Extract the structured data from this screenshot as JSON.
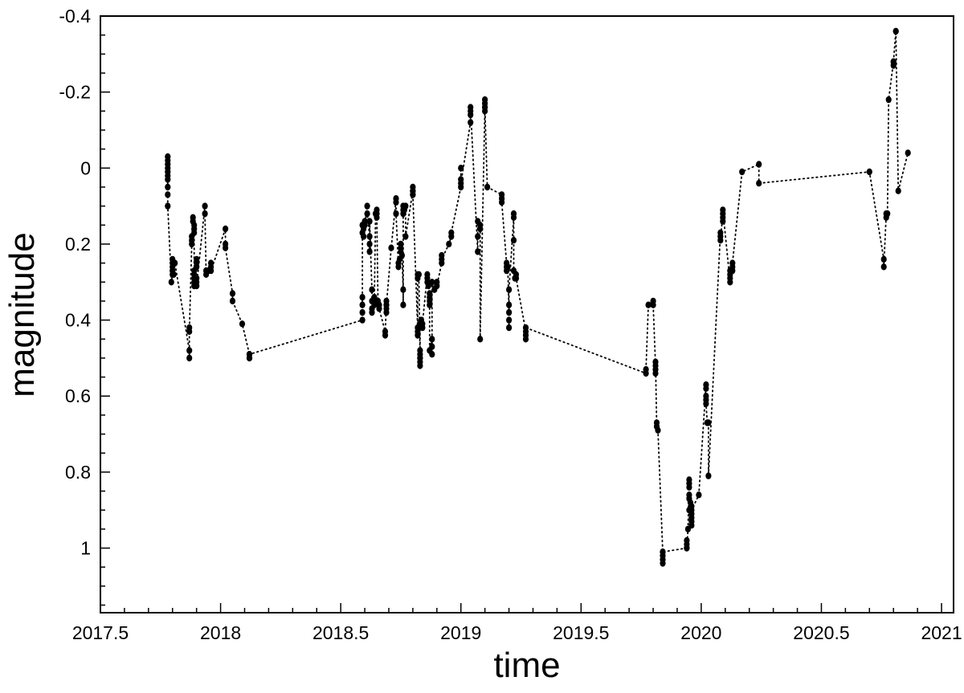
{
  "chart_data": {
    "type": "scatter",
    "title": "",
    "xlabel": "time",
    "ylabel": "magnitude",
    "xlim": [
      2017.5,
      2021.05
    ],
    "ylim": [
      1.17,
      -0.4
    ],
    "y_inverted": true,
    "grid": false,
    "legend": "none",
    "x_ticks": [
      "2017.5",
      "2018",
      "2018.5",
      "2019",
      "2019.5",
      "2020",
      "2020.5",
      "2021"
    ],
    "y_ticks": [
      "-0.4",
      "-0.2",
      "0",
      "0.2",
      "0.4",
      "0.6",
      "0.8",
      "1"
    ],
    "colors": {
      "marker": "#000000",
      "line": "#000000"
    },
    "connect_style": "dotted",
    "series": [
      {
        "x": [
          2017.78,
          2017.78,
          2017.78,
          2017.78,
          2017.78,
          2017.78,
          2017.78,
          2017.78,
          2017.78,
          2017.78,
          2017.795,
          2017.8,
          2017.8,
          2017.8,
          2017.8,
          2017.8,
          2017.805,
          2017.81,
          2017.87,
          2017.87,
          2017.87,
          2017.87,
          2017.88,
          2017.88,
          2017.88,
          2017.885,
          2017.885,
          2017.89,
          2017.89,
          2017.89,
          2017.89,
          2017.89,
          2017.89,
          2017.89,
          2017.89,
          2017.9,
          2017.9,
          2017.9,
          2017.9,
          2017.9,
          2017.9,
          2017.935,
          2017.935,
          2017.94,
          2017.94,
          2017.95,
          2017.96,
          2017.96,
          2017.96,
          2018.02,
          2018.02,
          2018.02,
          2018.05,
          2018.05,
          2018.09,
          2018.12,
          2018.12,
          2018.12,
          2018.12,
          2018.59,
          2018.59,
          2018.59,
          2018.59,
          2018.59,
          2018.59,
          2018.595,
          2018.595,
          2018.6,
          2018.6,
          2018.61,
          2018.61,
          2018.62,
          2018.62,
          2018.62,
          2018.62,
          2018.63,
          2018.63,
          2018.63,
          2018.63,
          2018.64,
          2018.64,
          2018.64,
          2018.645,
          2018.65,
          2018.65,
          2018.65,
          2018.655,
          2018.66,
          2018.66,
          2018.685,
          2018.685,
          2018.69,
          2018.69,
          2018.69,
          2018.69,
          2018.69,
          2018.71,
          2018.73,
          2018.73,
          2018.73,
          2018.74,
          2018.74,
          2018.745,
          2018.75,
          2018.75,
          2018.75,
          2018.755,
          2018.76,
          2018.76,
          2018.76,
          2018.76,
          2018.76,
          2018.765,
          2018.77,
          2018.77,
          2018.8,
          2018.8,
          2018.8,
          2018.8,
          2018.8,
          2018.82,
          2018.82,
          2018.82,
          2018.82,
          2018.82,
          2018.825,
          2018.83,
          2018.83,
          2018.83,
          2018.83,
          2018.83,
          2018.83,
          2018.83,
          2018.835,
          2018.84,
          2018.84,
          2018.86,
          2018.86,
          2018.86,
          2018.865,
          2018.87,
          2018.87,
          2018.87,
          2018.87,
          2018.87,
          2018.88,
          2018.88,
          2018.88,
          2018.88,
          2018.89,
          2018.9,
          2018.9,
          2018.92,
          2018.92,
          2018.92,
          2018.95,
          2018.96,
          2018.96,
          2019.0,
          2019.0,
          2019.0,
          2019.0,
          2019.04,
          2019.04,
          2019.04,
          2019.04,
          2019.07,
          2019.07,
          2019.07,
          2019.08,
          2019.08,
          2019.08,
          2019.1,
          2019.1,
          2019.1,
          2019.1,
          2019.1,
          2019.11,
          2019.17,
          2019.17,
          2019.17,
          2019.19,
          2019.19,
          2019.19,
          2019.195,
          2019.2,
          2019.2,
          2019.2,
          2019.2,
          2019.2,
          2019.22,
          2019.22,
          2019.22,
          2019.22,
          2019.225,
          2019.23,
          2019.23,
          2019.27,
          2019.27,
          2019.27,
          2019.27,
          2019.77,
          2019.77,
          2019.78,
          2019.8,
          2019.8,
          2019.81,
          2019.81,
          2019.81,
          2019.81,
          2019.815,
          2019.815,
          2019.82,
          2019.84,
          2019.84,
          2019.84,
          2019.84,
          2019.84,
          2019.94,
          2019.94,
          2019.94,
          2019.94,
          2019.945,
          2019.95,
          2019.95,
          2019.95,
          2019.95,
          2019.95,
          2019.95,
          2019.955,
          2019.96,
          2019.96,
          2019.96,
          2019.96,
          2019.96,
          2019.96,
          2019.99,
          2020.02,
          2020.02,
          2020.02,
          2020.02,
          2020.02,
          2020.025,
          2020.03,
          2020.03,
          2020.08,
          2020.08,
          2020.08,
          2020.09,
          2020.09,
          2020.09,
          2020.09,
          2020.12,
          2020.12,
          2020.12,
          2020.12,
          2020.13,
          2020.13,
          2020.13,
          2020.17,
          2020.24,
          2020.24,
          2020.7,
          2020.76,
          2020.76,
          2020.77,
          2020.77,
          2020.775,
          2020.78,
          2020.8,
          2020.8,
          2020.8,
          2020.81,
          2020.81,
          2020.82,
          2020.86
        ],
        "y": [
          -0.03,
          -0.02,
          -0.01,
          0.0,
          0.01,
          0.02,
          0.03,
          0.05,
          0.07,
          0.1,
          0.3,
          0.28,
          0.27,
          0.26,
          0.25,
          0.24,
          0.28,
          0.25,
          0.48,
          0.5,
          0.42,
          0.43,
          0.2,
          0.19,
          0.18,
          0.13,
          0.14,
          0.15,
          0.16,
          0.17,
          0.3,
          0.31,
          0.29,
          0.28,
          0.27,
          0.26,
          0.25,
          0.24,
          0.29,
          0.3,
          0.31,
          0.1,
          0.12,
          0.28,
          0.27,
          0.27,
          0.25,
          0.26,
          0.27,
          0.16,
          0.2,
          0.21,
          0.33,
          0.35,
          0.41,
          0.49,
          0.5,
          0.5,
          0.49,
          0.4,
          0.38,
          0.36,
          0.34,
          0.17,
          0.15,
          0.16,
          0.18,
          0.14,
          0.15,
          0.1,
          0.12,
          0.18,
          0.2,
          0.22,
          0.14,
          0.32,
          0.35,
          0.37,
          0.38,
          0.34,
          0.36,
          0.35,
          0.12,
          0.11,
          0.13,
          0.12,
          0.35,
          0.36,
          0.37,
          0.43,
          0.44,
          0.35,
          0.36,
          0.37,
          0.38,
          0.36,
          0.21,
          0.08,
          0.09,
          0.12,
          0.26,
          0.25,
          0.24,
          0.22,
          0.2,
          0.21,
          0.23,
          0.32,
          0.36,
          0.1,
          0.11,
          0.12,
          0.11,
          0.1,
          0.18,
          0.06,
          0.07,
          0.05,
          0.06,
          0.07,
          0.42,
          0.43,
          0.44,
          0.28,
          0.29,
          0.28,
          0.5,
          0.51,
          0.52,
          0.5,
          0.49,
          0.48,
          0.41,
          0.4,
          0.42,
          0.41,
          0.28,
          0.29,
          0.3,
          0.31,
          0.35,
          0.36,
          0.34,
          0.33,
          0.48,
          0.45,
          0.47,
          0.49,
          0.3,
          0.32,
          0.3,
          0.31,
          0.25,
          0.23,
          0.24,
          0.2,
          0.18,
          0.17,
          0.05,
          0.03,
          0.0,
          0.04,
          -0.12,
          -0.15,
          -0.14,
          -0.16,
          0.22,
          0.18,
          0.14,
          0.16,
          0.15,
          0.45,
          -0.16,
          -0.17,
          -0.18,
          -0.15,
          -0.16,
          0.05,
          0.07,
          0.08,
          0.09,
          0.25,
          0.26,
          0.27,
          0.26,
          0.38,
          0.36,
          0.4,
          0.42,
          0.32,
          0.13,
          0.12,
          0.19,
          0.27,
          0.29,
          0.28,
          0.29,
          0.43,
          0.44,
          0.45,
          0.42,
          0.54,
          0.53,
          0.36,
          0.35,
          0.36,
          0.52,
          0.53,
          0.54,
          0.51,
          0.68,
          0.67,
          0.69,
          1.01,
          1.02,
          1.03,
          1.04,
          1.01,
          1.0,
          0.98,
          0.99,
          1.0,
          0.95,
          0.82,
          0.83,
          0.84,
          0.86,
          0.87,
          0.9,
          0.88,
          0.89,
          0.92,
          0.91,
          0.93,
          0.94,
          0.9,
          0.86,
          0.57,
          0.58,
          0.6,
          0.61,
          0.62,
          0.67,
          0.67,
          0.81,
          0.17,
          0.18,
          0.19,
          0.12,
          0.13,
          0.14,
          0.11,
          0.3,
          0.29,
          0.28,
          0.27,
          0.26,
          0.27,
          0.25,
          0.01,
          -0.01,
          0.04,
          0.01,
          0.24,
          0.26,
          0.12,
          0.13,
          0.12,
          -0.18,
          -0.28,
          -0.27,
          -0.28,
          -0.36,
          -0.36,
          0.06,
          -0.04
        ]
      }
    ]
  }
}
